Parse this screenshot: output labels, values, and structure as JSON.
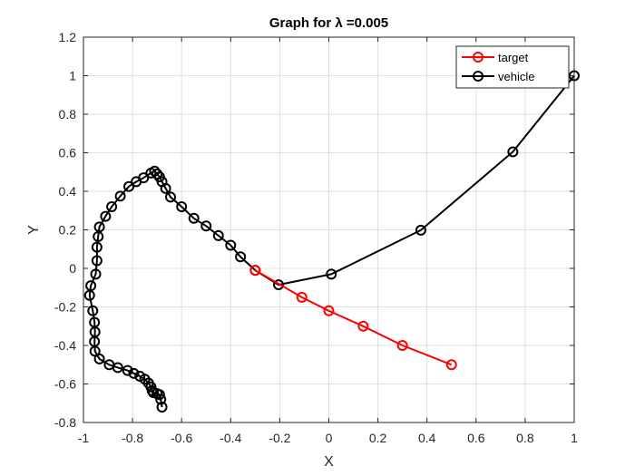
{
  "chart_data": {
    "type": "line",
    "title": "Graph for λ =0.005",
    "xlabel": "X",
    "ylabel": "Y",
    "xlim": [
      -1,
      1
    ],
    "ylim": [
      -0.8,
      1.2
    ],
    "xticks": [
      "-1",
      "-0.8",
      "-0.6",
      "-0.4",
      "-0.2",
      "0",
      "0.2",
      "0.4",
      "0.6",
      "0.8",
      "1"
    ],
    "yticks": [
      "-0.8",
      "-0.6",
      "-0.4",
      "-0.2",
      "0",
      "0.2",
      "0.4",
      "0.6",
      "0.8",
      "1",
      "1.2"
    ],
    "grid": true,
    "legend_position": "top-right",
    "series": [
      {
        "name": "target",
        "color": "#ff0000",
        "marker": "circle",
        "points": [
          [
            -0.3,
            -0.01
          ],
          [
            -0.11,
            -0.15
          ],
          [
            0.0,
            -0.22
          ],
          [
            0.14,
            -0.3
          ],
          [
            0.3,
            -0.4
          ],
          [
            0.5,
            -0.5
          ]
        ]
      },
      {
        "name": "vehicle",
        "color": "#000000",
        "marker": "circle",
        "points": [
          [
            1.0,
            1.0
          ],
          [
            0.75,
            0.605
          ],
          [
            0.375,
            0.198
          ],
          [
            0.01,
            -0.03
          ],
          [
            -0.205,
            -0.085
          ],
          [
            -0.3,
            -0.01
          ],
          [
            -0.36,
            0.06
          ],
          [
            -0.4,
            0.12
          ],
          [
            -0.45,
            0.17
          ],
          [
            -0.5,
            0.22
          ],
          [
            -0.55,
            0.26
          ],
          [
            -0.6,
            0.32
          ],
          [
            -0.645,
            0.37
          ],
          [
            -0.665,
            0.415
          ],
          [
            -0.68,
            0.45
          ],
          [
            -0.69,
            0.475
          ],
          [
            -0.7,
            0.49
          ],
          [
            -0.71,
            0.505
          ],
          [
            -0.725,
            0.495
          ],
          [
            -0.755,
            0.47
          ],
          [
            -0.785,
            0.45
          ],
          [
            -0.815,
            0.425
          ],
          [
            -0.85,
            0.375
          ],
          [
            -0.885,
            0.32
          ],
          [
            -0.91,
            0.27
          ],
          [
            -0.935,
            0.215
          ],
          [
            -0.94,
            0.165
          ],
          [
            -0.945,
            0.11
          ],
          [
            -0.945,
            0.04
          ],
          [
            -0.95,
            -0.03
          ],
          [
            -0.97,
            -0.09
          ],
          [
            -0.975,
            -0.14
          ],
          [
            -0.962,
            -0.22
          ],
          [
            -0.955,
            -0.28
          ],
          [
            -0.953,
            -0.33
          ],
          [
            -0.955,
            -0.38
          ],
          [
            -0.953,
            -0.43
          ],
          [
            -0.935,
            -0.47
          ],
          [
            -0.895,
            -0.5
          ],
          [
            -0.86,
            -0.515
          ],
          [
            -0.82,
            -0.53
          ],
          [
            -0.795,
            -0.545
          ],
          [
            -0.77,
            -0.56
          ],
          [
            -0.75,
            -0.575
          ],
          [
            -0.735,
            -0.595
          ],
          [
            -0.725,
            -0.615
          ],
          [
            -0.72,
            -0.635
          ],
          [
            -0.715,
            -0.645
          ],
          [
            -0.7,
            -0.65
          ],
          [
            -0.69,
            -0.655
          ],
          [
            -0.685,
            -0.68
          ],
          [
            -0.68,
            -0.72
          ]
        ]
      }
    ]
  }
}
